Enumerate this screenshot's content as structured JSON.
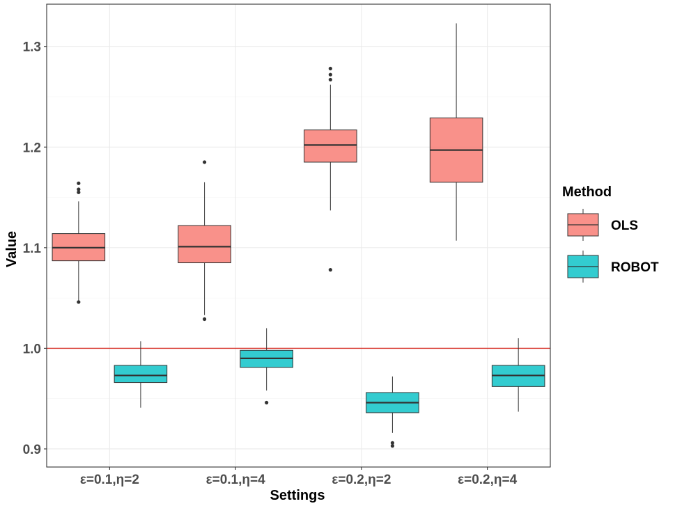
{
  "chart_data": {
    "type": "boxplot",
    "title": "",
    "xlabel": "Settings",
    "ylabel": "Value",
    "ylim": [
      0.882,
      1.342
    ],
    "yticks": [
      0.9,
      1.0,
      1.1,
      1.2,
      1.3
    ],
    "ytick_labels": [
      "0.9",
      "1.0",
      "1.1",
      "1.2",
      "1.3"
    ],
    "categories": [
      "ε=0.1,η=2",
      "ε=0.1,η=4",
      "ε=0.2,η=2",
      "ε=0.2,η=4"
    ],
    "reference_line": {
      "y": 1.0,
      "color": "#d73027"
    },
    "legend": {
      "title": "Method",
      "position": "right"
    },
    "series": [
      {
        "name": "OLS",
        "color": "#f8766d",
        "boxes": [
          {
            "whisker_low": 1.047,
            "q1": 1.087,
            "median": 1.1,
            "q3": 1.114,
            "whisker_high": 1.146,
            "outliers": [
              1.046,
              1.155,
              1.158,
              1.164
            ]
          },
          {
            "whisker_low": 1.033,
            "q1": 1.085,
            "median": 1.101,
            "q3": 1.122,
            "whisker_high": 1.165,
            "outliers": [
              1.029,
              1.185
            ]
          },
          {
            "whisker_low": 1.137,
            "q1": 1.185,
            "median": 1.202,
            "q3": 1.217,
            "whisker_high": 1.262,
            "outliers": [
              1.078,
              1.267,
              1.272,
              1.278
            ]
          },
          {
            "whisker_low": 1.107,
            "q1": 1.165,
            "median": 1.197,
            "q3": 1.229,
            "whisker_high": 1.323,
            "outliers": []
          }
        ]
      },
      {
        "name": "ROBOT",
        "color": "#00bfc4",
        "boxes": [
          {
            "whisker_low": 0.941,
            "q1": 0.966,
            "median": 0.973,
            "q3": 0.983,
            "whisker_high": 1.007,
            "outliers": []
          },
          {
            "whisker_low": 0.958,
            "q1": 0.981,
            "median": 0.99,
            "q3": 0.998,
            "whisker_high": 1.02,
            "outliers": [
              0.946
            ]
          },
          {
            "whisker_low": 0.916,
            "q1": 0.936,
            "median": 0.946,
            "q3": 0.956,
            "whisker_high": 0.972,
            "outliers": [
              0.903,
              0.906
            ]
          },
          {
            "whisker_low": 0.937,
            "q1": 0.962,
            "median": 0.973,
            "q3": 0.983,
            "whisker_high": 1.01,
            "outliers": []
          }
        ]
      }
    ]
  }
}
